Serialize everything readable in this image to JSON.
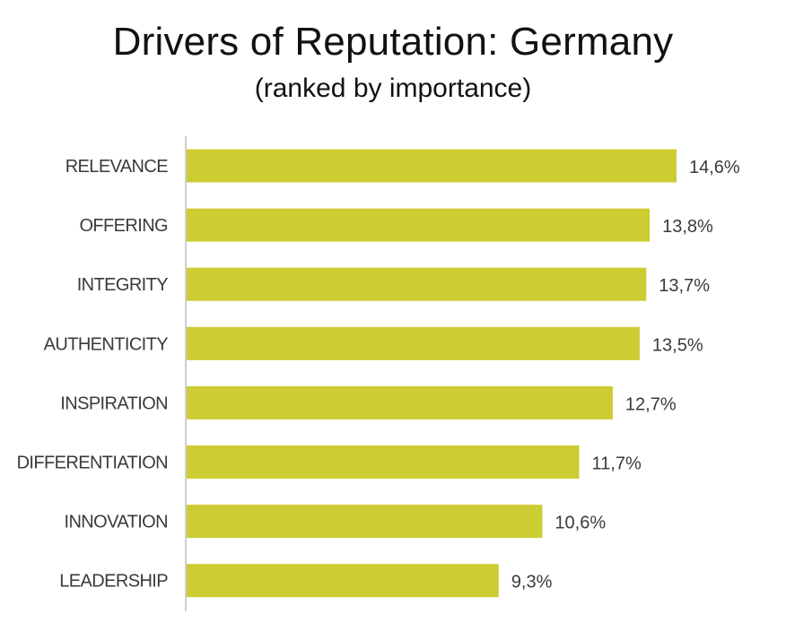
{
  "chart_data": {
    "type": "bar",
    "orientation": "horizontal",
    "title": "Drivers of Reputation: Germany",
    "subtitle": "(ranked by importance)",
    "categories": [
      "RELEVANCE",
      "OFFERING",
      "INTEGRITY",
      "AUTHENTICITY",
      "INSPIRATION",
      "DIFFERENTIATION",
      "INNOVATION",
      "LEADERSHIP"
    ],
    "values": [
      14.6,
      13.8,
      13.7,
      13.5,
      12.7,
      11.7,
      10.6,
      9.3
    ],
    "value_labels": [
      "14,6%",
      "13,8%",
      "13,7%",
      "13,5%",
      "12,7%",
      "11,7%",
      "10,6%",
      "9,3%"
    ],
    "xlim": [
      0,
      14.6
    ],
    "grid": false,
    "legend": "none",
    "bar_color": "#cccc33",
    "axis_color": "#bfbfbf"
  }
}
